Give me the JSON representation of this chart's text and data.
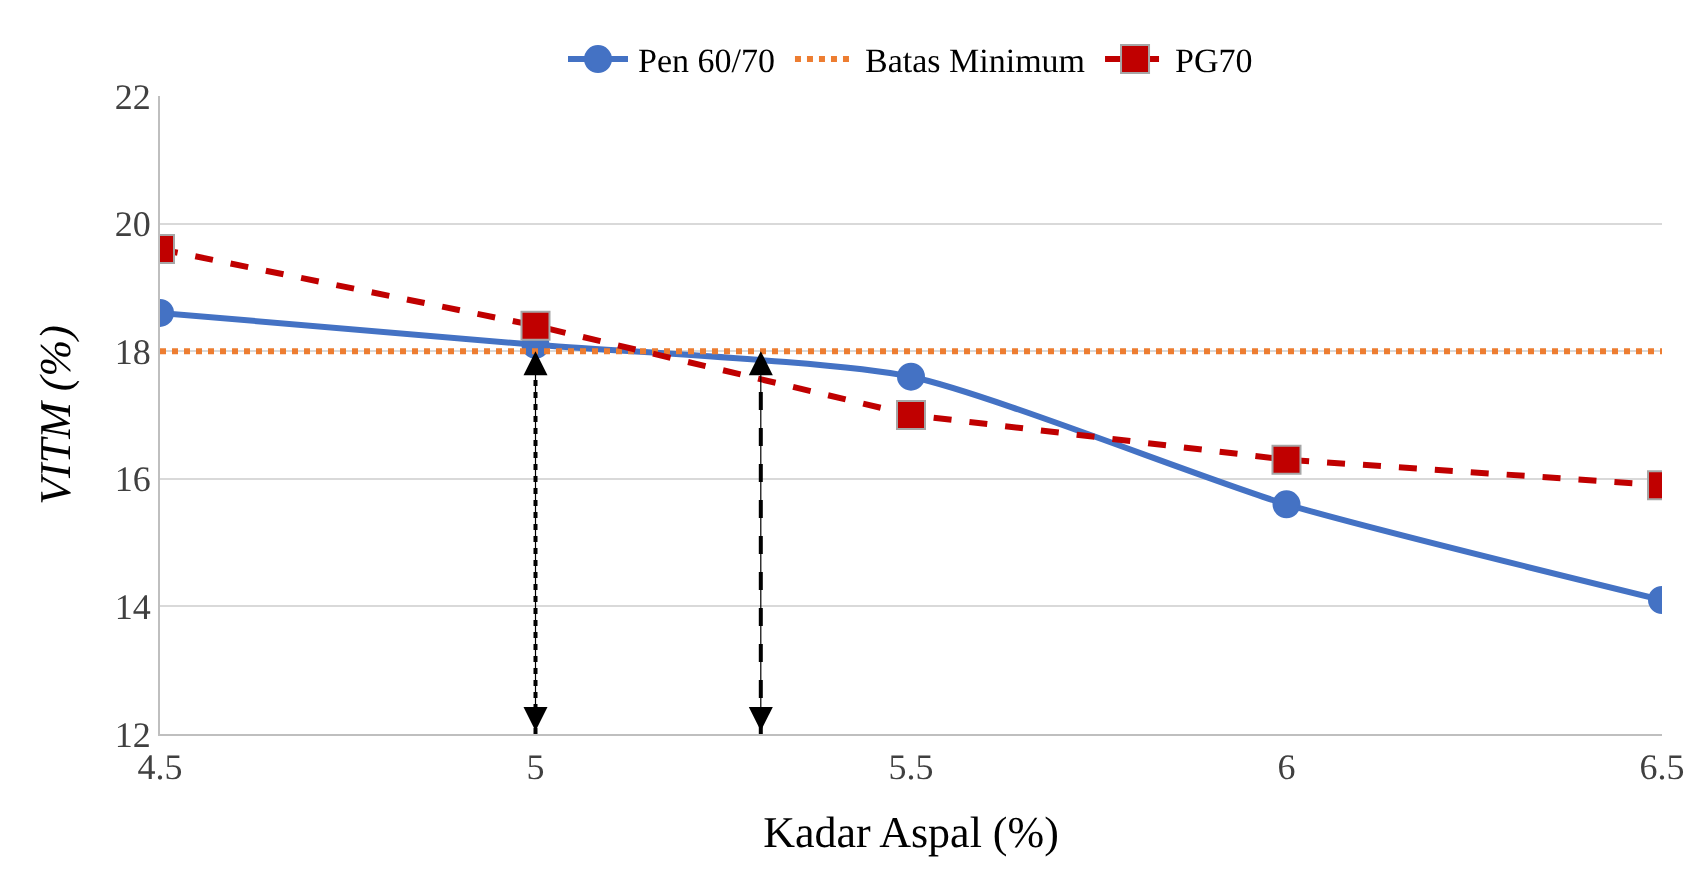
{
  "chart_data": {
    "type": "line",
    "xlabel": "Kadar Aspal (%)",
    "ylabel": "VITM (%)",
    "xlim": [
      4.5,
      6.5
    ],
    "xticks": [
      4.5,
      5,
      5.5,
      6,
      6.5
    ],
    "ylim": [
      12,
      22
    ],
    "yticks": [
      12,
      14,
      16,
      18,
      20,
      22
    ],
    "grid": "y",
    "legend": "top",
    "series": [
      {
        "name": "Pen 60/70",
        "color": "#4472c4",
        "x": [
          4.5,
          5,
          5.5,
          6,
          6.5
        ],
        "values": [
          18.6,
          18.1,
          17.6,
          15.6,
          14.1
        ],
        "marker": "circle",
        "line_style": "solid"
      },
      {
        "name": "Batas Minimum",
        "color": "#ed7d31",
        "x": [
          4.5,
          6.5
        ],
        "values": [
          18,
          18
        ],
        "marker": "none",
        "line_style": "dotted"
      },
      {
        "name": "PG70",
        "color": "#c00000",
        "x": [
          4.5,
          5,
          5.5,
          6,
          6.5
        ],
        "values": [
          19.6,
          18.4,
          17.0,
          16.3,
          15.9
        ],
        "marker": "square",
        "line_style": "dashed"
      }
    ],
    "ref_lines": [
      {
        "axis": "x",
        "value": 5,
        "color": "#000000",
        "line_style": "dotted"
      },
      {
        "axis": "x",
        "value": 5.3,
        "color": "#000000",
        "line_style": "dashed"
      }
    ]
  }
}
